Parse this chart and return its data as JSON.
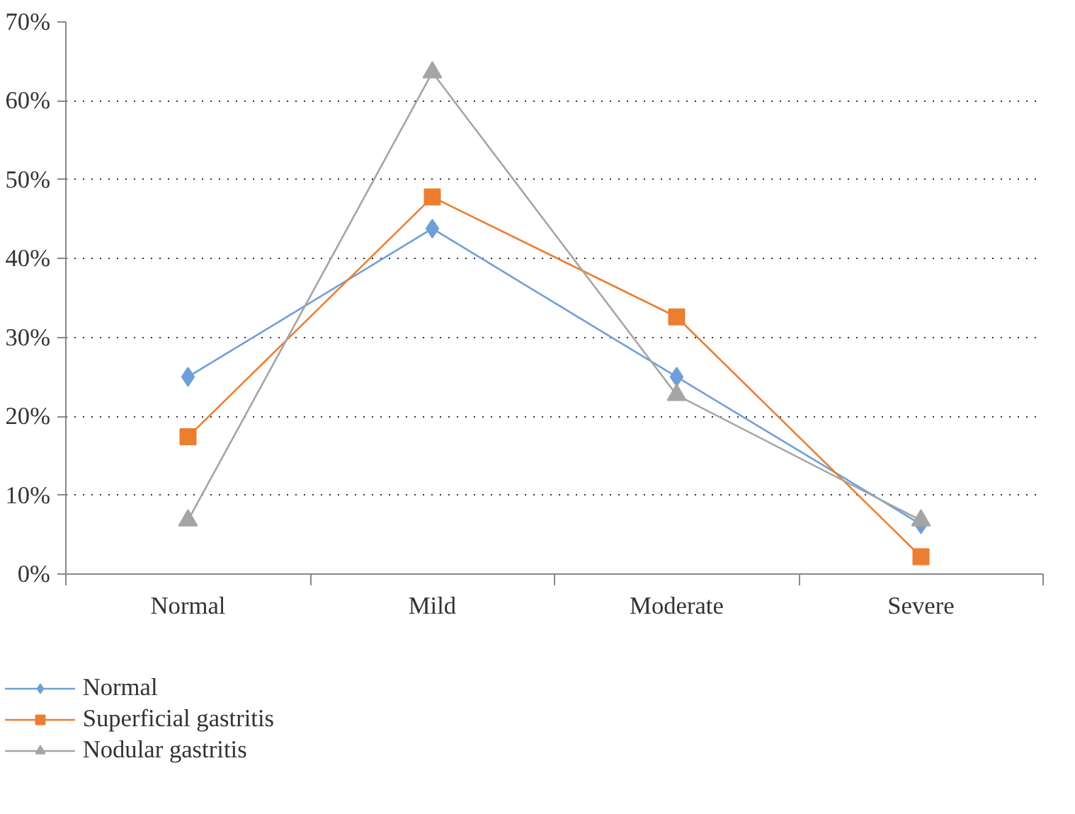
{
  "chart_data": {
    "type": "line",
    "categories": [
      "Normal",
      "Mild",
      "Moderate",
      "Severe"
    ],
    "series": [
      {
        "name": "Normal",
        "color": "#6f9fd8",
        "marker": "diamond",
        "values": [
          25,
          43.8,
          25,
          6.3
        ]
      },
      {
        "name": "Superficial gastritis",
        "color": "#ed7d31",
        "marker": "square",
        "values": [
          17.4,
          47.8,
          32.6,
          2.2
        ]
      },
      {
        "name": "Nodular gastritis",
        "color": "#a5a5a5",
        "marker": "triangle",
        "values": [
          6.8,
          63.6,
          22.7,
          6.8
        ]
      }
    ],
    "ylim": [
      0,
      70
    ],
    "yticks": [
      {
        "value": 0,
        "label": "0%"
      },
      {
        "value": 10,
        "label": "10%"
      },
      {
        "value": 20,
        "label": "20%"
      },
      {
        "value": 30,
        "label": "30%"
      },
      {
        "value": 40,
        "label": "40%"
      },
      {
        "value": 50,
        "label": "50%"
      },
      {
        "value": 60,
        "label": "60%"
      },
      {
        "value": 70,
        "label": "70%"
      }
    ],
    "grid": "y",
    "legend": "bottom",
    "line_style": "solid"
  }
}
